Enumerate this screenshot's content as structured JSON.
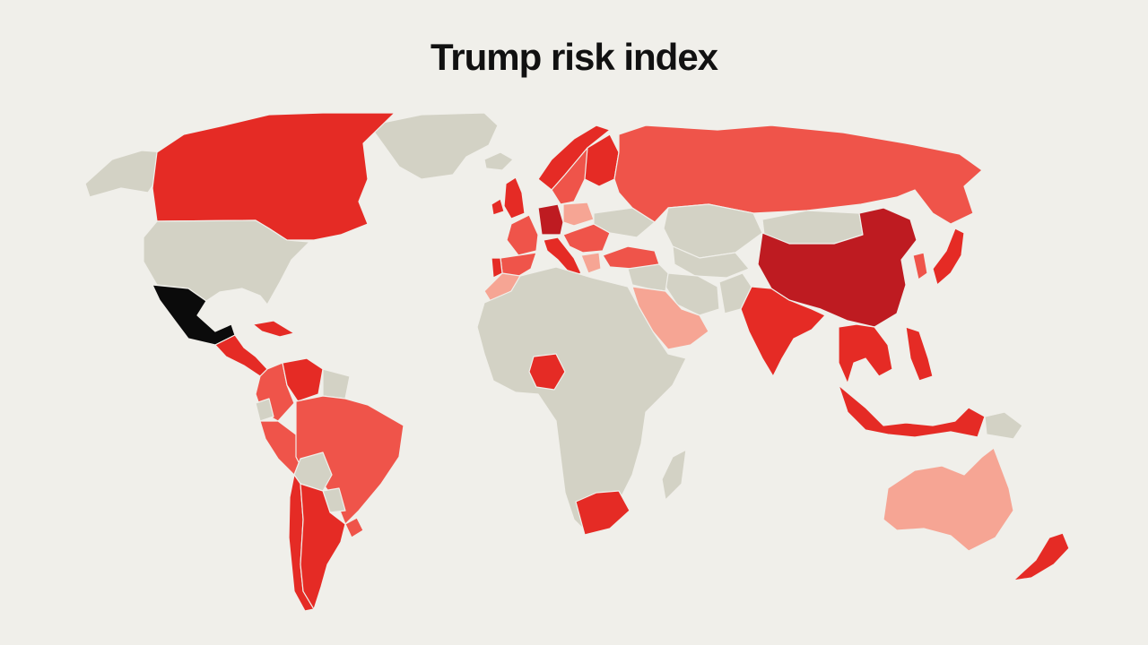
{
  "title": "Trump risk index",
  "colors": {
    "background": "#f0efea",
    "no_data": "#d3d2c5",
    "very_low": "#f6a594",
    "low": "#ef544a",
    "medium": "#e52b25",
    "high": "#be1b21",
    "highest": "#0b0b0b"
  },
  "regions": [
    {
      "name": "Greenland",
      "level": "no_data"
    },
    {
      "name": "Alaska",
      "level": "no_data"
    },
    {
      "name": "Canada",
      "level": "medium"
    },
    {
      "name": "United States",
      "level": "no_data"
    },
    {
      "name": "Mexico",
      "level": "highest"
    },
    {
      "name": "Central America",
      "level": "medium"
    },
    {
      "name": "Cuba",
      "level": "medium"
    },
    {
      "name": "Colombia",
      "level": "low"
    },
    {
      "name": "Venezuela",
      "level": "medium"
    },
    {
      "name": "Guianas",
      "level": "no_data"
    },
    {
      "name": "Ecuador",
      "level": "no_data"
    },
    {
      "name": "Peru",
      "level": "low"
    },
    {
      "name": "Brazil",
      "level": "low"
    },
    {
      "name": "Bolivia",
      "level": "no_data"
    },
    {
      "name": "Paraguay",
      "level": "no_data"
    },
    {
      "name": "Chile",
      "level": "medium"
    },
    {
      "name": "Argentina",
      "level": "medium"
    },
    {
      "name": "Uruguay",
      "level": "low"
    },
    {
      "name": "Iceland",
      "level": "no_data"
    },
    {
      "name": "Ireland",
      "level": "medium"
    },
    {
      "name": "United Kingdom",
      "level": "medium"
    },
    {
      "name": "Norway",
      "level": "medium"
    },
    {
      "name": "Sweden",
      "level": "low"
    },
    {
      "name": "Finland",
      "level": "medium"
    },
    {
      "name": "France",
      "level": "low"
    },
    {
      "name": "Spain",
      "level": "low"
    },
    {
      "name": "Portugal",
      "level": "medium"
    },
    {
      "name": "Germany",
      "level": "high"
    },
    {
      "name": "Poland",
      "level": "very_low"
    },
    {
      "name": "Italy",
      "level": "medium"
    },
    {
      "name": "Balkans",
      "level": "low"
    },
    {
      "name": "Greece",
      "level": "very_low"
    },
    {
      "name": "Ukraine",
      "level": "no_data"
    },
    {
      "name": "Turkey",
      "level": "low"
    },
    {
      "name": "Russia",
      "level": "low"
    },
    {
      "name": "Kazakhstan",
      "level": "no_data"
    },
    {
      "name": "Mongolia",
      "level": "no_data"
    },
    {
      "name": "Central Asia",
      "level": "no_data"
    },
    {
      "name": "Iran",
      "level": "no_data"
    },
    {
      "name": "Middle East",
      "level": "no_data"
    },
    {
      "name": "Saudi Arabia",
      "level": "very_low"
    },
    {
      "name": "Pakistan",
      "level": "no_data"
    },
    {
      "name": "India",
      "level": "medium"
    },
    {
      "name": "China",
      "level": "high"
    },
    {
      "name": "Korea",
      "level": "low"
    },
    {
      "name": "Japan",
      "level": "medium"
    },
    {
      "name": "Southeast Asia",
      "level": "medium"
    },
    {
      "name": "Philippines",
      "level": "medium"
    },
    {
      "name": "Indonesia",
      "level": "medium"
    },
    {
      "name": "Papua New Guinea",
      "level": "no_data"
    },
    {
      "name": "Morocco",
      "level": "very_low"
    },
    {
      "name": "Africa",
      "level": "no_data"
    },
    {
      "name": "Nigeria",
      "level": "medium"
    },
    {
      "name": "South Africa",
      "level": "medium"
    },
    {
      "name": "Madagascar",
      "level": "no_data"
    },
    {
      "name": "Australia",
      "level": "very_low"
    },
    {
      "name": "New Zealand",
      "level": "medium"
    }
  ]
}
